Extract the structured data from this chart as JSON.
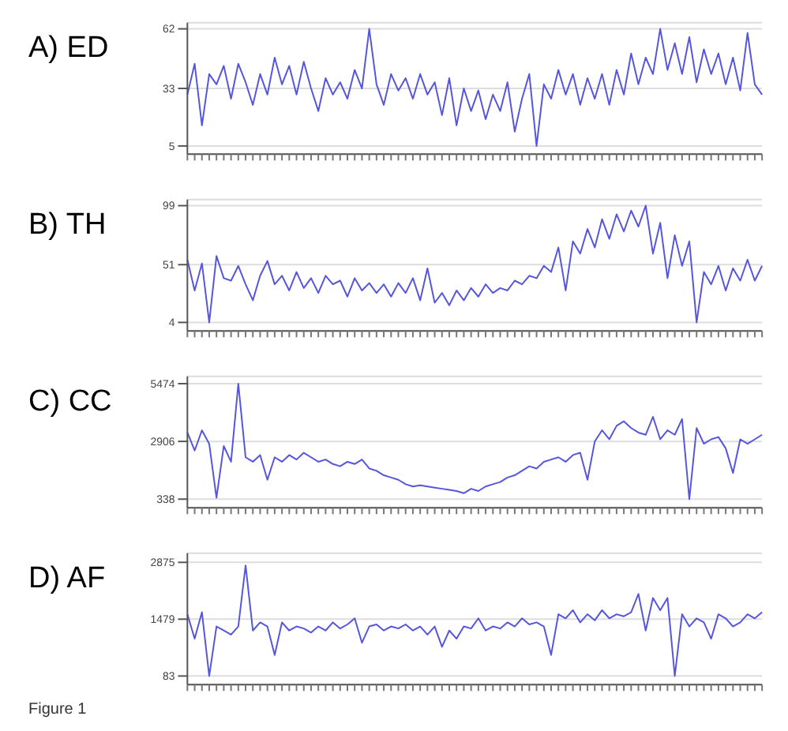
{
  "chart_data": [
    {
      "type": "line",
      "title": "A) ED",
      "categories": [
        null,
        null,
        null,
        null,
        null,
        null,
        null,
        null,
        null,
        null,
        null,
        null,
        null,
        null,
        null,
        null,
        null,
        null,
        null,
        null,
        null,
        null,
        null,
        null,
        null,
        null,
        null,
        null,
        null,
        null,
        null,
        null,
        null,
        null,
        null,
        null,
        null,
        null,
        null,
        null,
        null,
        null,
        null,
        null,
        null,
        null,
        null,
        null,
        null,
        null,
        null,
        null,
        null,
        null,
        null,
        null,
        null,
        null,
        null,
        null,
        null,
        null,
        null,
        null,
        null,
        null,
        null,
        null,
        null,
        null,
        null,
        null,
        null,
        null,
        null,
        null,
        null,
        null,
        null,
        null
      ],
      "series": [
        {
          "color": "#5555dd",
          "values": [
            30,
            45,
            15,
            40,
            35,
            44,
            28,
            45,
            36,
            25,
            40,
            30,
            48,
            35,
            44,
            30,
            46,
            33,
            22,
            38,
            30,
            36,
            28,
            42,
            33,
            62,
            35,
            25,
            40,
            32,
            38,
            28,
            40,
            30,
            36,
            20,
            38,
            15,
            33,
            22,
            32,
            18,
            30,
            22,
            36,
            12,
            28,
            40,
            5,
            35,
            28,
            42,
            30,
            40,
            25,
            38,
            28,
            40,
            25,
            42,
            30,
            50,
            35,
            48,
            40,
            62,
            42,
            55,
            40,
            58,
            36,
            52,
            40,
            50,
            35,
            48,
            32,
            60,
            35,
            30
          ]
        }
      ],
      "ylim": [
        1,
        65
      ],
      "yticks": [
        5,
        33,
        62
      ],
      "grid": "y",
      "tick_labels": "y",
      "marker": "none"
    },
    {
      "type": "line",
      "title": "B) TH",
      "categories": [
        null,
        null,
        null,
        null,
        null,
        null,
        null,
        null,
        null,
        null,
        null,
        null,
        null,
        null,
        null,
        null,
        null,
        null,
        null,
        null,
        null,
        null,
        null,
        null,
        null,
        null,
        null,
        null,
        null,
        null,
        null,
        null,
        null,
        null,
        null,
        null,
        null,
        null,
        null,
        null,
        null,
        null,
        null,
        null,
        null,
        null,
        null,
        null,
        null,
        null,
        null,
        null,
        null,
        null,
        null,
        null,
        null,
        null,
        null,
        null,
        null,
        null,
        null,
        null,
        null,
        null,
        null,
        null,
        null,
        null,
        null,
        null,
        null,
        null,
        null,
        null,
        null,
        null,
        null,
        null
      ],
      "series": [
        {
          "color": "#5555dd",
          "values": [
            55,
            30,
            52,
            4,
            58,
            40,
            38,
            50,
            35,
            22,
            42,
            54,
            35,
            42,
            30,
            45,
            32,
            40,
            28,
            42,
            35,
            38,
            25,
            40,
            30,
            36,
            28,
            35,
            25,
            36,
            28,
            40,
            22,
            48,
            20,
            28,
            18,
            30,
            22,
            32,
            25,
            35,
            28,
            32,
            30,
            38,
            35,
            42,
            40,
            50,
            45,
            65,
            30,
            70,
            60,
            80,
            65,
            88,
            72,
            92,
            78,
            95,
            82,
            99,
            60,
            85,
            40,
            75,
            50,
            70,
            4,
            45,
            35,
            50,
            30,
            48,
            38,
            55,
            38,
            50
          ]
        }
      ],
      "ylim": [
        -3,
        104
      ],
      "yticks": [
        4,
        51,
        99
      ],
      "grid": "y",
      "tick_labels": "y",
      "marker": "none"
    },
    {
      "type": "line",
      "title": "C) CC",
      "categories": [
        null,
        null,
        null,
        null,
        null,
        null,
        null,
        null,
        null,
        null,
        null,
        null,
        null,
        null,
        null,
        null,
        null,
        null,
        null,
        null,
        null,
        null,
        null,
        null,
        null,
        null,
        null,
        null,
        null,
        null,
        null,
        null,
        null,
        null,
        null,
        null,
        null,
        null,
        null,
        null,
        null,
        null,
        null,
        null,
        null,
        null,
        null,
        null,
        null,
        null,
        null,
        null,
        null,
        null,
        null,
        null,
        null,
        null,
        null,
        null,
        null,
        null,
        null,
        null,
        null,
        null,
        null,
        null,
        null,
        null,
        null,
        null,
        null,
        null,
        null,
        null,
        null,
        null,
        null,
        null
      ],
      "series": [
        {
          "color": "#5555dd",
          "values": [
            3300,
            2500,
            3400,
            2800,
            400,
            2700,
            2000,
            5474,
            2200,
            2000,
            2300,
            1200,
            2200,
            2000,
            2300,
            2100,
            2400,
            2200,
            2000,
            2100,
            1900,
            1800,
            2000,
            1900,
            2100,
            1700,
            1600,
            1400,
            1300,
            1200,
            1000,
            900,
            950,
            900,
            850,
            800,
            750,
            700,
            600,
            800,
            700,
            900,
            1000,
            1100,
            1300,
            1400,
            1600,
            1800,
            1700,
            2000,
            2100,
            2200,
            2000,
            2300,
            2400,
            1200,
            2900,
            3400,
            3000,
            3600,
            3800,
            3500,
            3300,
            3200,
            4000,
            3000,
            3400,
            3200,
            3900,
            338,
            3500,
            2800,
            3000,
            3100,
            2600,
            1500,
            3000,
            2800,
            3000,
            3200
          ]
        }
      ],
      "ylim": [
        -50,
        5800
      ],
      "yticks": [
        338,
        2906,
        5474
      ],
      "grid": "y",
      "tick_labels": "y",
      "marker": "none"
    },
    {
      "type": "line",
      "title": "D) AF",
      "categories": [
        null,
        null,
        null,
        null,
        null,
        null,
        null,
        null,
        null,
        null,
        null,
        null,
        null,
        null,
        null,
        null,
        null,
        null,
        null,
        null,
        null,
        null,
        null,
        null,
        null,
        null,
        null,
        null,
        null,
        null,
        null,
        null,
        null,
        null,
        null,
        null,
        null,
        null,
        null,
        null,
        null,
        null,
        null,
        null,
        null,
        null,
        null,
        null,
        null,
        null,
        null,
        null,
        null,
        null,
        null,
        null,
        null,
        null,
        null,
        null,
        null,
        null,
        null,
        null,
        null,
        null,
        null,
        null,
        null,
        null,
        null,
        null,
        null,
        null,
        null,
        null,
        null,
        null,
        null,
        null
      ],
      "series": [
        {
          "color": "#5555dd",
          "values": [
            1600,
            1000,
            1650,
            83,
            1300,
            1200,
            1100,
            1300,
            2800,
            1200,
            1400,
            1300,
            600,
            1400,
            1200,
            1300,
            1250,
            1150,
            1300,
            1200,
            1400,
            1250,
            1350,
            1500,
            900,
            1300,
            1350,
            1200,
            1300,
            1250,
            1350,
            1200,
            1300,
            1100,
            1300,
            800,
            1200,
            1000,
            1300,
            1250,
            1500,
            1200,
            1300,
            1250,
            1400,
            1300,
            1500,
            1350,
            1400,
            1300,
            600,
            1600,
            1500,
            1700,
            1400,
            1600,
            1450,
            1700,
            1500,
            1600,
            1550,
            1650,
            2100,
            1200,
            2000,
            1700,
            2000,
            83,
            1600,
            1300,
            1500,
            1400,
            1000,
            1600,
            1500,
            1300,
            1400,
            1600,
            1500,
            1650
          ]
        }
      ],
      "ylim": [
        -130,
        3100
      ],
      "yticks": [
        83,
        1479,
        2875
      ],
      "grid": "y",
      "tick_labels": "y",
      "marker": "none",
      "annotations": [
        "Figure 1"
      ]
    }
  ]
}
